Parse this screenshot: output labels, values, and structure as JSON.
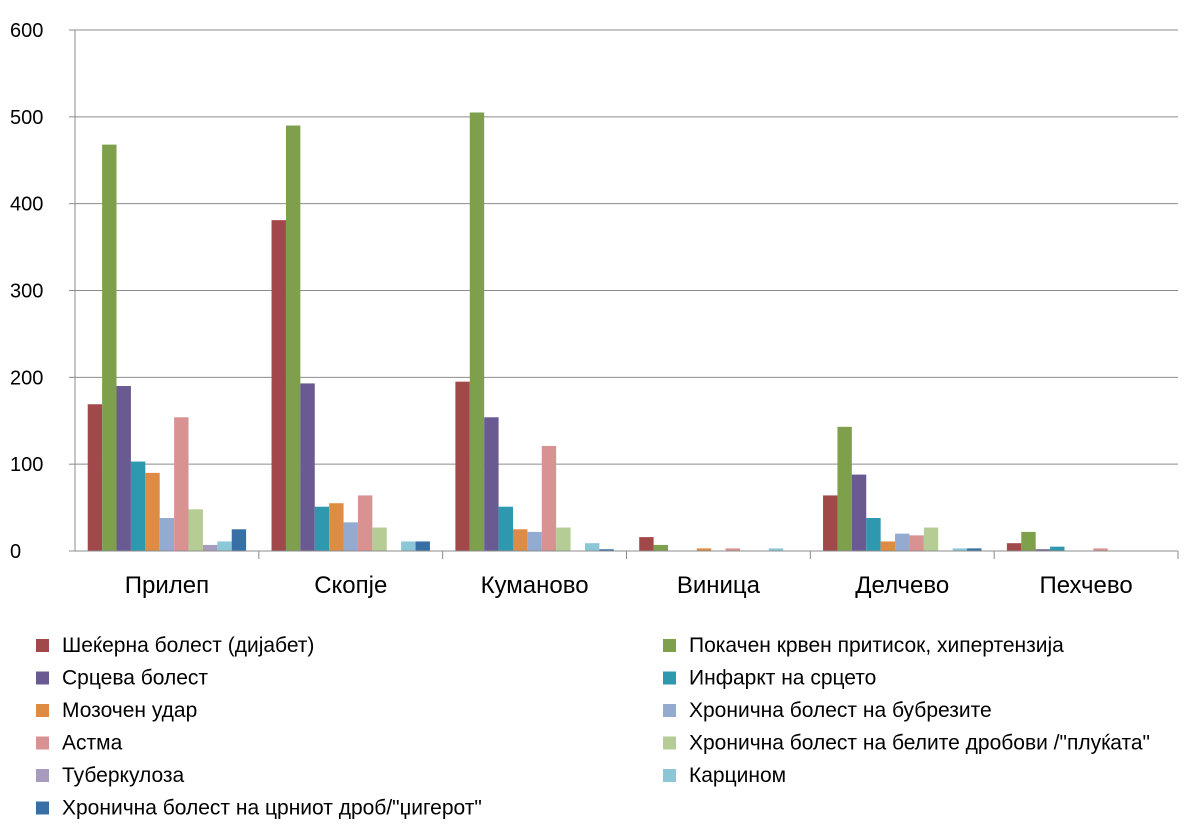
{
  "chart_data": {
    "type": "bar",
    "title": "",
    "xlabel": "",
    "ylabel": "",
    "ylim": [
      0,
      600
    ],
    "yticks": [
      0,
      100,
      200,
      300,
      400,
      500,
      600
    ],
    "grid": true,
    "legend_placement": "bottom",
    "categories": [
      "Прилеп",
      "Скопје",
      "Куманово",
      "Виница",
      "Делчево",
      "Пехчево"
    ],
    "series": [
      {
        "name": "Шеќерна болест (дијабет)",
        "color": "#A0484A",
        "values": [
          169,
          381,
          195,
          16,
          64,
          9
        ]
      },
      {
        "name": "Покачен крвен притисок, хипертензија",
        "color": "#7E9F4C",
        "values": [
          468,
          490,
          505,
          7,
          143,
          22
        ]
      },
      {
        "name": "Срцева болест",
        "color": "#6A5A92",
        "values": [
          190,
          193,
          154,
          0,
          88,
          2
        ]
      },
      {
        "name": "Инфаркт на срцето",
        "color": "#2E98AF",
        "values": [
          103,
          51,
          51,
          0,
          38,
          5
        ]
      },
      {
        "name": "Мозочен удар",
        "color": "#DE8B43",
        "values": [
          90,
          55,
          25,
          3,
          11,
          0
        ]
      },
      {
        "name": "Хронична болест на бубрезите",
        "color": "#93ABD1",
        "values": [
          38,
          33,
          22,
          0,
          20,
          0
        ]
      },
      {
        "name": "Астма",
        "color": "#D89291",
        "values": [
          154,
          64,
          121,
          3,
          18,
          3
        ]
      },
      {
        "name": "Хронична болест на белите дробови /\"плуќата\"",
        "color": "#B5CD94",
        "values": [
          48,
          27,
          27,
          0,
          27,
          0
        ]
      },
      {
        "name": "Туберкулоза",
        "color": "#A79BC0",
        "values": [
          7,
          0,
          0,
          0,
          0,
          0
        ]
      },
      {
        "name": "Карцином",
        "color": "#8CC7D7",
        "values": [
          11,
          11,
          9,
          3,
          3,
          0
        ]
      },
      {
        "name": "Хронична болест на црниот дроб/\"џигерот\"",
        "color": "#386FA4",
        "values": [
          25,
          11,
          2,
          0,
          3,
          0
        ]
      }
    ]
  }
}
